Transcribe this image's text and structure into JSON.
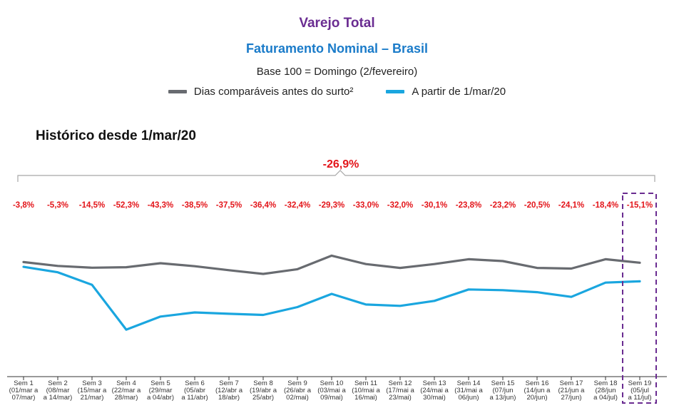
{
  "header": {
    "title": "Varejo Total",
    "subtitle": "Faturamento Nominal – Brasil",
    "base_note": "Base 100 = Domingo (2/fevereiro)"
  },
  "legend": [
    {
      "label": "Dias comparáveis antes do surto²",
      "color": "#686b70"
    },
    {
      "label": "A partir de 1/mar/20",
      "color": "#1aa6df"
    }
  ],
  "section_title": "Histórico desde 1/mar/20",
  "chart_data": {
    "type": "line",
    "total_change": "-26,9%",
    "weeks": [
      {
        "top": "Sem 1",
        "mid": "(01/mar a",
        "bot": "07/mar)"
      },
      {
        "top": "Sem 2",
        "mid": "(08/mar",
        "bot": "a 14/mar)"
      },
      {
        "top": "Sem 3",
        "mid": "(15/mar a",
        "bot": "21/mar)"
      },
      {
        "top": "Sem 4",
        "mid": "(22/mar a",
        "bot": "28/mar)"
      },
      {
        "top": "Sem 5",
        "mid": "(29/mar",
        "bot": "a 04/abr)"
      },
      {
        "top": "Sem 6",
        "mid": "(05/abr",
        "bot": "a 11/abr)"
      },
      {
        "top": "Sem 7",
        "mid": "(12/abr a",
        "bot": "18/abr)"
      },
      {
        "top": "Sem 8",
        "mid": "(19/abr a",
        "bot": "25/abr)"
      },
      {
        "top": "Sem 9",
        "mid": "(26/abr a",
        "bot": "02/mai)"
      },
      {
        "top": "Sem 10",
        "mid": "(03/mai a",
        "bot": "09/mai)"
      },
      {
        "top": "Sem 11",
        "mid": "(10/mai a",
        "bot": "16/mai)"
      },
      {
        "top": "Sem 12",
        "mid": "(17/mai a",
        "bot": "23/mai)"
      },
      {
        "top": "Sem 13",
        "mid": "(24/mai a",
        "bot": "30/mai)"
      },
      {
        "top": "Sem 14",
        "mid": "(31/mai a",
        "bot": "06/jun)"
      },
      {
        "top": "Sem 15",
        "mid": "(07/jun",
        "bot": "a 13/jun)"
      },
      {
        "top": "Sem 16",
        "mid": "(14/jun a",
        "bot": "20/jun)"
      },
      {
        "top": "Sem 17",
        "mid": "(21/jun a",
        "bot": "27/jun)"
      },
      {
        "top": "Sem 18",
        "mid": "(28/jun",
        "bot": "a 04/jul)"
      },
      {
        "top": "Sem 19",
        "mid": "(05/jul",
        "bot": "a 11/jul)"
      }
    ],
    "weekly_change": [
      "-3,8%",
      "-5,3%",
      "-14,5%",
      "-52,3%",
      "-43,3%",
      "-38,5%",
      "-37,5%",
      "-36,4%",
      "-32,4%",
      "-29,3%",
      "-33,0%",
      "-32,0%",
      "-30,1%",
      "-23,8%",
      "-23,2%",
      "-20,5%",
      "-24,1%",
      "-18,4%",
      "-15,1%"
    ],
    "series": [
      {
        "name": "Dias comparáveis antes do surto²",
        "color": "#686b70",
        "values": [
          100.0,
          96.9,
          95.5,
          95.9,
          99.1,
          96.7,
          93.5,
          90.5,
          94.3,
          105.2,
          98.4,
          95.3,
          98.4,
          102.3,
          100.8,
          95.3,
          94.8,
          102.3,
          99.5
        ]
      },
      {
        "name": "A partir de 1/mar/20",
        "color": "#1aa6df",
        "values": [
          96.2,
          91.8,
          81.7,
          45.7,
          56.2,
          59.5,
          58.4,
          57.5,
          63.8,
          74.4,
          65.9,
          64.8,
          68.8,
          78.0,
          77.4,
          75.8,
          72.0,
          83.5,
          84.5
        ]
      }
    ],
    "ylim": [
      40,
      110
    ],
    "highlight_week": "Sem 19",
    "grid": false
  }
}
